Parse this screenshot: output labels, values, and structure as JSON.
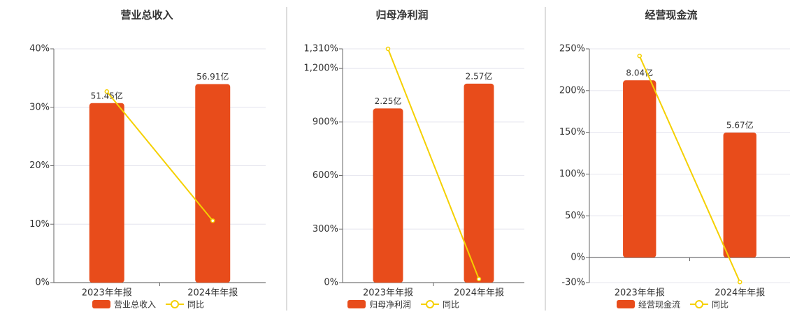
{
  "chart_data": [
    {
      "type": "bar",
      "title": "营业总收入",
      "categories": [
        "2023年年报",
        "2024年年报"
      ],
      "series": [
        {
          "name": "营业总收入",
          "type": "bar",
          "axis": "y2",
          "color": "#e84c1b",
          "values": [
            51.45,
            56.91
          ],
          "value_labels": [
            "51.45亿",
            "56.91亿"
          ]
        },
        {
          "name": "同比",
          "type": "line",
          "color": "#f5d000",
          "values": [
            32.7,
            10.6
          ]
        }
      ],
      "ylim": [
        0,
        40
      ],
      "yticks": [
        {
          "value": 0,
          "label": "0%"
        },
        {
          "value": 10,
          "label": "10%"
        },
        {
          "value": 20,
          "label": "20%"
        },
        {
          "value": 30,
          "label": "30%"
        },
        {
          "value": 40,
          "label": "40%"
        }
      ],
      "y2lim": [
        0,
        67
      ],
      "grid": true
    },
    {
      "type": "bar",
      "title": "归母净利润",
      "categories": [
        "2023年年报",
        "2024年年报"
      ],
      "series": [
        {
          "name": "归母净利润",
          "type": "bar",
          "axis": "y2",
          "color": "#e84c1b",
          "values": [
            2.25,
            2.57
          ],
          "value_labels": [
            "2.25亿",
            "2.57亿"
          ]
        },
        {
          "name": "同比",
          "type": "line",
          "color": "#f5d000",
          "values": [
            1310,
            20
          ]
        }
      ],
      "ylim": [
        0,
        1310
      ],
      "yticks": [
        {
          "value": 0,
          "label": "0%"
        },
        {
          "value": 300,
          "label": "300%"
        },
        {
          "value": 600,
          "label": "600%"
        },
        {
          "value": 900,
          "label": "900%"
        },
        {
          "value": 1200,
          "label": "1,200%"
        },
        {
          "value": 1310,
          "label": "1,310%"
        }
      ],
      "y2lim": [
        0,
        3.02
      ],
      "grid": true
    },
    {
      "type": "bar",
      "title": "经营现金流",
      "categories": [
        "2023年年报",
        "2024年年报"
      ],
      "series": [
        {
          "name": "经营现金流",
          "type": "bar",
          "axis": "y2",
          "color": "#e84c1b",
          "values": [
            8.04,
            5.67
          ],
          "value_labels": [
            "8.04亿",
            "5.67亿"
          ]
        },
        {
          "name": "同比",
          "type": "line",
          "color": "#f5d000",
          "values": [
            241.5,
            -29.3
          ]
        }
      ],
      "ylim": [
        -30,
        250
      ],
      "yticks": [
        {
          "value": -30,
          "label": "-30%"
        },
        {
          "value": 0,
          "label": "0%"
        },
        {
          "value": 50,
          "label": "50%"
        },
        {
          "value": 100,
          "label": "100%"
        },
        {
          "value": 150,
          "label": "150%"
        },
        {
          "value": 200,
          "label": "200%"
        },
        {
          "value": 250,
          "label": "250%"
        }
      ],
      "y2lim": [
        -1.14,
        9.47
      ],
      "grid": true
    }
  ]
}
